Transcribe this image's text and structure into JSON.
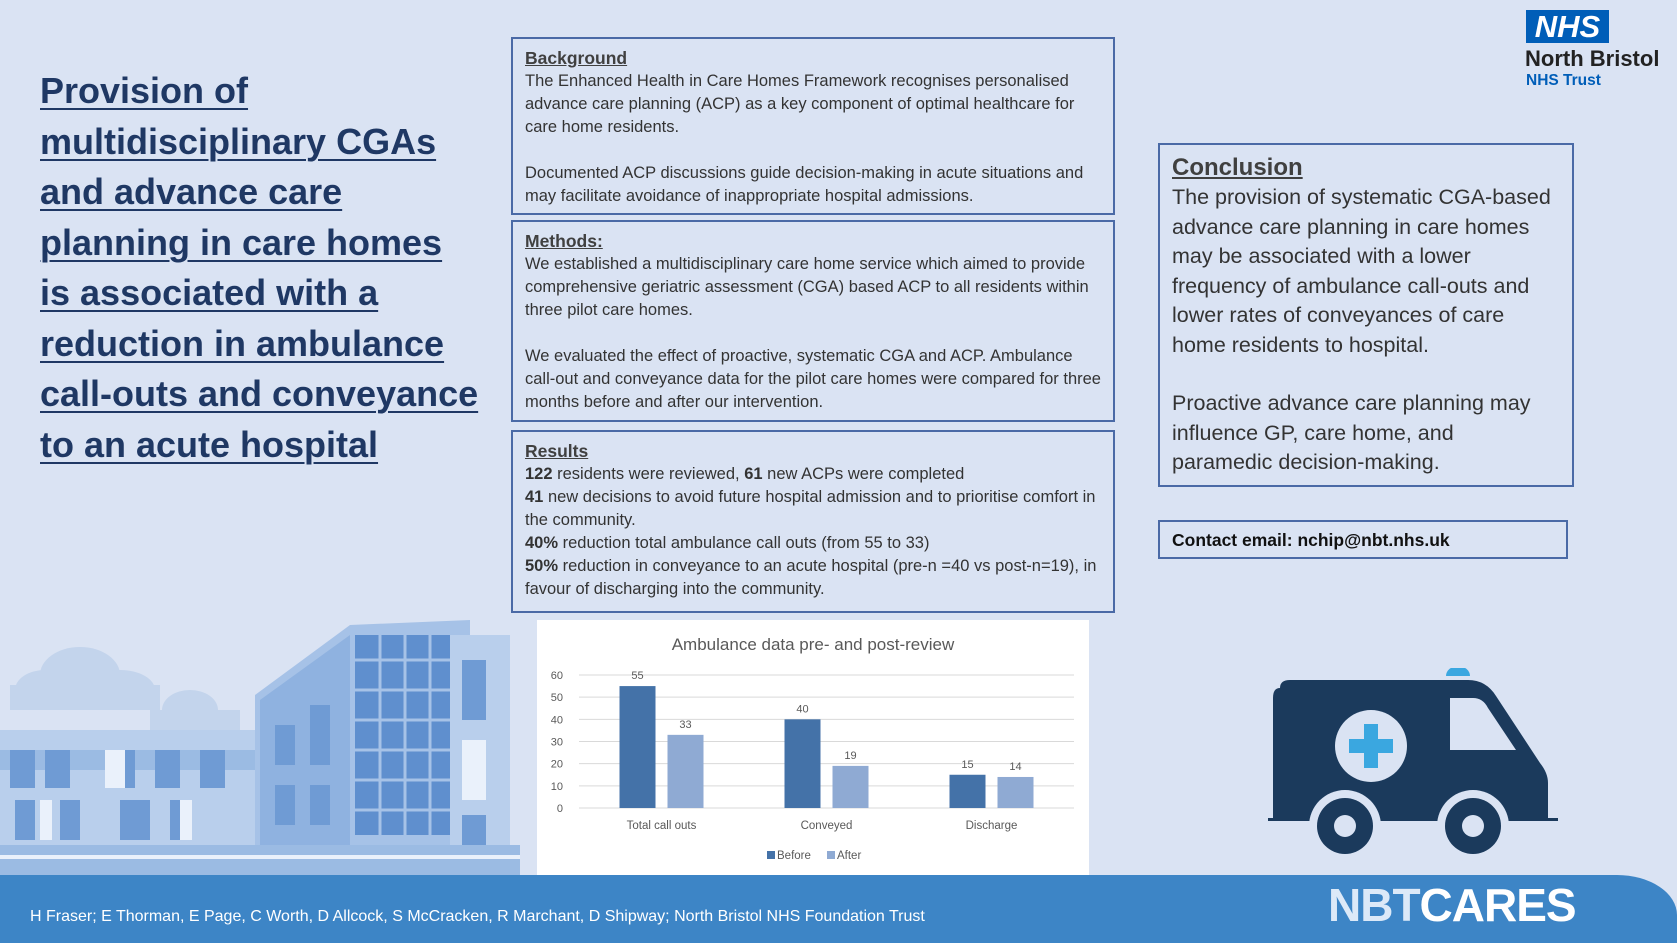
{
  "title": "Provision of multidisciplinary CGAs and advance care planning in care homes is associated with a reduction in ambulance call-outs and conveyance to an acute hospital",
  "logo": {
    "nhs": "NHS",
    "org": "North Bristol",
    "trust": "NHS Trust"
  },
  "background": {
    "heading": "Background",
    "p1": "The Enhanced Health in Care Homes Framework recognises personalised advance care planning (ACP) as a key component of optimal healthcare for care home residents.",
    "p2": "Documented ACP discussions guide decision-making in acute situations and may facilitate avoidance of inappropriate hospital admissions."
  },
  "methods": {
    "heading": "Methods:",
    "p1": "We established a multidisciplinary care home service which aimed to provide comprehensive geriatric assessment (CGA) based ACP to all residents within three pilot care homes.",
    "p2": "We evaluated the effect of proactive, systematic CGA and ACP.  Ambulance call-out and conveyance data for the pilot care homes were compared for three months before and after our intervention."
  },
  "results": {
    "heading": "Results",
    "items": [
      {
        "b": "122",
        "t": " residents were reviewed, ",
        "b2": "61",
        "t2": " new ACPs were completed"
      },
      {
        "b": "41",
        "t": " new decisions to avoid future hospital admission and to prioritise comfort in the community."
      },
      {
        "b": "40%",
        "t": " reduction total ambulance call outs (from 55 to 33)"
      },
      {
        "b": "50%",
        "t": " reduction in conveyance to an acute hospital (pre-n =40 vs post-n=19), in favour of discharging into the community."
      }
    ]
  },
  "conclusion": {
    "heading": "Conclusion",
    "p1": "The provision of systematic CGA-based advance care planning in care homes may be associated with a lower frequency of ambulance call-outs and lower rates of conveyances of care home residents to hospital.",
    "p2": "Proactive advance care planning may influence GP, care home, and paramedic decision-making."
  },
  "contact": "Contact email: nchip@nbt.nhs.uk",
  "footer": {
    "authors": "H Fraser; E Thorman, E Page, C Worth, D Allcock, S McCracken, R Marchant, D Shipway; North Bristol NHS Foundation Trust",
    "brand1": "NBT",
    "brand2": "CARES"
  },
  "chart_data": {
    "type": "bar",
    "title": "Ambulance data pre- and post-review",
    "categories": [
      "Total call outs",
      "Conveyed",
      "Discharge"
    ],
    "series": [
      {
        "name": "Before",
        "values": [
          55,
          40,
          15
        ],
        "color": "#4472a8"
      },
      {
        "name": "After",
        "values": [
          33,
          19,
          14
        ],
        "color": "#8faad3"
      }
    ],
    "ylim": [
      0,
      60
    ],
    "yticks": [
      0,
      10,
      20,
      30,
      40,
      50,
      60
    ],
    "grid": true,
    "legend": "bottom"
  }
}
